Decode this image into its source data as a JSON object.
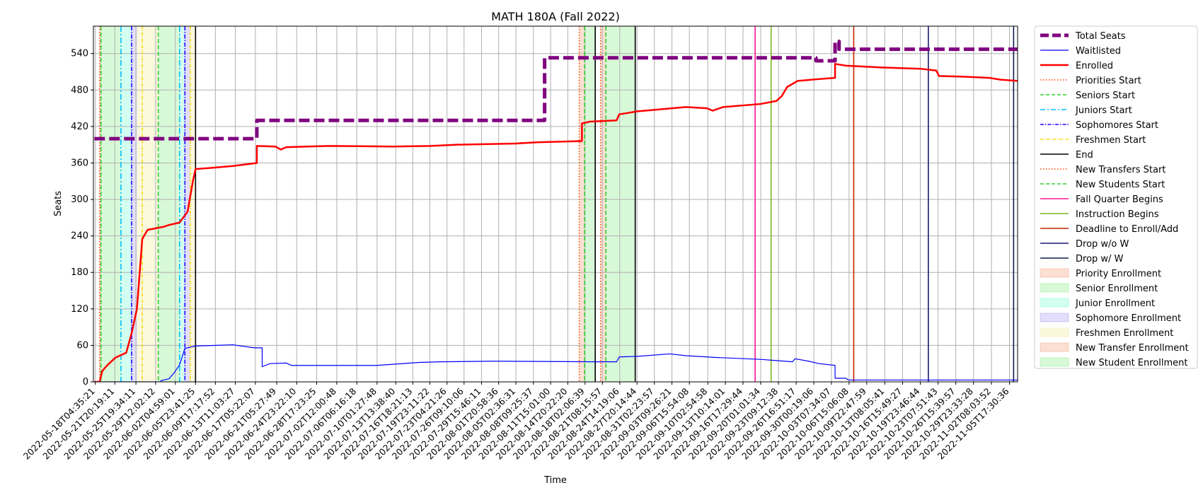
{
  "chart_data": {
    "type": "line",
    "title": "MATH 180A (Fall 2022)",
    "xlabel": "Time",
    "ylabel": "Seats",
    "xlim": [
      "2022-05-17T20:00:00",
      "2022-11-07T06:00:00"
    ],
    "ylim": [
      0,
      585
    ],
    "y_ticks": [
      0,
      60,
      120,
      180,
      240,
      300,
      360,
      420,
      480,
      540
    ],
    "x_ticks": [
      "2022-05-18T04:35:21",
      "2022-05-21T20:19:11",
      "2022-05-25T19:34:11",
      "2022-05-29T12:02:12",
      "2022-06-02T04:59:01",
      "2022-06-05T23:41:25",
      "2022-06-09T17:17:52",
      "2022-06-13T11:03:27",
      "2022-06-17T05:22:07",
      "2022-06-21T05:27:49",
      "2022-06-24T23:22:10",
      "2022-06-28T17:23:25",
      "2022-07-02T12:00:48",
      "2022-07-06T06:16:18",
      "2022-07-10T01:27:48",
      "2022-07-13T13:38:40",
      "2022-07-16T18:21:13",
      "2022-07-19T23:11:22",
      "2022-07-23T04:21:26",
      "2022-07-26T09:10:06",
      "2022-07-29T15:46:11",
      "2022-08-01T20:58:36",
      "2022-08-05T02:36:31",
      "2022-08-08T09:25:37",
      "2022-08-11T15:01:00",
      "2022-08-14T20:22:20",
      "2022-08-18T02:06:39",
      "2022-08-21T08:15:57",
      "2022-08-24T14:19:06",
      "2022-08-27T20:14:44",
      "2022-08-31T02:23:57",
      "2022-09-03T09:26:21",
      "2022-09-06T15:54:08",
      "2022-09-10T02:54:58",
      "2022-09-13T10:14:01",
      "2022-09-16T17:29:44",
      "2022-09-20T01:01:34",
      "2022-09-23T09:12:38",
      "2022-09-26T16:51:17",
      "2022-09-30T00:19:06",
      "2022-10-03T07:34:07",
      "2022-10-06T15:06:08",
      "2022-10-09T22:47:59",
      "2022-10-13T08:05:41",
      "2022-10-16T15:49:27",
      "2022-10-19T23:46:44",
      "2022-10-23T07:51:43",
      "2022-10-26T15:39:57",
      "2022-10-29T23:33:28",
      "2022-11-02T08:03:52",
      "2022-11-05T17:30:36"
    ],
    "grid": true,
    "legend_position": "outside-right",
    "series": [
      {
        "name": "Total Seats",
        "color": "#800080",
        "style": "dashed-thick",
        "points": [
          [
            "2022-05-18T00:00",
            400
          ],
          [
            "2022-06-17T12:00",
            400
          ],
          [
            "2022-06-17T12:00",
            430
          ],
          [
            "2022-08-10T12:00",
            430
          ],
          [
            "2022-08-10T12:00",
            533
          ],
          [
            "2022-09-30T10:00",
            533
          ],
          [
            "2022-09-30T10:00",
            528
          ],
          [
            "2022-10-04T00:00",
            528
          ],
          [
            "2022-10-04T00:00",
            560
          ],
          [
            "2022-10-04T18:00",
            560
          ],
          [
            "2022-10-04T18:00",
            547
          ],
          [
            "2022-11-07T06:00",
            547
          ]
        ]
      },
      {
        "name": "Waitlisted",
        "color": "#0000ff",
        "style": "solid-thin",
        "points": [
          [
            "2022-05-18T00:00",
            0
          ],
          [
            "2022-05-30T12:00",
            0
          ],
          [
            "2022-05-30T12:00",
            2
          ],
          [
            "2022-06-01T00:00",
            5
          ],
          [
            "2022-06-02T00:00",
            15
          ],
          [
            "2022-06-03T00:00",
            28
          ],
          [
            "2022-06-04T00:00",
            55
          ],
          [
            "2022-06-06T00:00",
            59
          ],
          [
            "2022-06-10T00:00",
            60
          ],
          [
            "2022-06-13T00:00",
            61
          ],
          [
            "2022-06-17T00:00",
            56
          ],
          [
            "2022-06-18T12:00",
            56
          ],
          [
            "2022-06-18T12:00",
            25
          ],
          [
            "2022-06-20T00:00",
            30
          ],
          [
            "2022-06-23T00:00",
            31
          ],
          [
            "2022-06-24T00:00",
            27
          ],
          [
            "2022-07-10T00:00",
            27
          ],
          [
            "2022-07-18T00:00",
            32
          ],
          [
            "2022-07-22T00:00",
            33
          ],
          [
            "2022-08-01T00:00",
            34
          ],
          [
            "2022-08-20T00:00",
            33
          ],
          [
            "2022-08-24T00:00",
            33
          ],
          [
            "2022-08-24T12:00",
            41
          ],
          [
            "2022-08-28T00:00",
            42
          ],
          [
            "2022-09-03T00:00",
            46
          ],
          [
            "2022-09-06T00:00",
            43
          ],
          [
            "2022-09-12T00:00",
            40
          ],
          [
            "2022-09-20T00:00",
            37
          ],
          [
            "2022-09-23T00:00",
            35
          ],
          [
            "2022-09-26T00:00",
            33
          ],
          [
            "2022-09-26T12:00",
            38
          ],
          [
            "2022-09-29T00:00",
            34
          ],
          [
            "2022-10-01T00:00",
            30
          ],
          [
            "2022-10-04T00:00",
            27
          ],
          [
            "2022-10-04T00:00",
            6
          ],
          [
            "2022-10-06T00:00",
            6
          ],
          [
            "2022-10-06T12:00",
            3
          ],
          [
            "2022-11-07T06:00",
            3
          ]
        ]
      },
      {
        "name": "Enrolled",
        "color": "#ff0000",
        "style": "solid-thick",
        "points": [
          [
            "2022-05-18T00:00",
            0
          ],
          [
            "2022-05-19T00:00",
            0
          ],
          [
            "2022-05-19T12:00",
            18
          ],
          [
            "2022-05-20T12:00",
            28
          ],
          [
            "2022-05-22T00:00",
            40
          ],
          [
            "2022-05-24T00:00",
            48
          ],
          [
            "2022-05-25T00:00",
            80
          ],
          [
            "2022-05-26T00:00",
            120
          ],
          [
            "2022-05-27T00:00",
            235
          ],
          [
            "2022-05-28T00:00",
            250
          ],
          [
            "2022-05-31T00:00",
            255
          ],
          [
            "2022-06-01T00:00",
            258
          ],
          [
            "2022-06-03T00:00",
            262
          ],
          [
            "2022-06-04T12:00",
            280
          ],
          [
            "2022-06-05T12:00",
            330
          ],
          [
            "2022-06-06T00:00",
            350
          ],
          [
            "2022-06-09T00:00",
            352
          ],
          [
            "2022-06-13T00:00",
            355
          ],
          [
            "2022-06-17T12:00",
            360
          ],
          [
            "2022-06-17T12:00",
            388
          ],
          [
            "2022-06-21T00:00",
            387
          ],
          [
            "2022-06-22T00:00",
            382
          ],
          [
            "2022-06-23T00:00",
            386
          ],
          [
            "2022-07-01T00:00",
            388
          ],
          [
            "2022-07-13T00:00",
            387
          ],
          [
            "2022-07-20T00:00",
            388
          ],
          [
            "2022-07-25T00:00",
            390
          ],
          [
            "2022-08-05T00:00",
            392
          ],
          [
            "2022-08-09T00:00",
            394
          ],
          [
            "2022-08-17T12:00",
            396
          ],
          [
            "2022-08-17T12:00",
            425
          ],
          [
            "2022-08-19T00:00",
            428
          ],
          [
            "2022-08-24T00:00",
            430
          ],
          [
            "2022-08-24T12:00",
            440
          ],
          [
            "2022-08-28T00:00",
            445
          ],
          [
            "2022-09-01T00:00",
            448
          ],
          [
            "2022-09-06T00:00",
            452
          ],
          [
            "2022-09-10T00:00",
            450
          ],
          [
            "2022-09-11T00:00",
            446
          ],
          [
            "2022-09-13T00:00",
            452
          ],
          [
            "2022-09-20T00:00",
            457
          ],
          [
            "2022-09-23T00:00",
            462
          ],
          [
            "2022-09-24T00:00",
            470
          ],
          [
            "2022-09-25T00:00",
            485
          ],
          [
            "2022-09-27T00:00",
            495
          ],
          [
            "2022-10-01T00:00",
            498
          ],
          [
            "2022-10-04T00:00",
            500
          ],
          [
            "2022-10-04T00:00",
            523
          ],
          [
            "2022-10-06T00:00",
            520
          ],
          [
            "2022-10-13T00:00",
            517
          ],
          [
            "2022-10-20T00:00",
            515
          ],
          [
            "2022-10-23T00:00",
            512
          ],
          [
            "2022-10-23T12:00",
            503
          ],
          [
            "2022-10-28T00:00",
            502
          ],
          [
            "2022-11-02T00:00",
            500
          ],
          [
            "2022-11-04T00:00",
            497
          ],
          [
            "2022-11-07T06:00",
            495
          ]
        ]
      }
    ],
    "vlines": [
      {
        "name": "Priorities Start",
        "color": "#ff4500",
        "style": "dotted",
        "x": [
          "2022-05-19T00:00",
          "2022-08-17T00:00"
        ]
      },
      {
        "name": "Seniors Start",
        "color": "#32cd32",
        "style": "dashed",
        "x": [
          "2022-05-19T06:00",
          "2022-05-30T00:00"
        ]
      },
      {
        "name": "Juniors Start",
        "color": "#00bfff",
        "style": "dashdot",
        "x": [
          "2022-05-23T00:00",
          "2022-06-03T00:00"
        ]
      },
      {
        "name": "Sophomores Start",
        "color": "#1e00ff",
        "style": "dashdotdense",
        "x": [
          "2022-05-25T00:00",
          "2022-06-04T00:00"
        ]
      },
      {
        "name": "Freshmen Start",
        "color": "#ffd700",
        "style": "dashdotlight",
        "x": [
          "2022-05-27T00:00",
          "2022-06-05T00:00"
        ]
      },
      {
        "name": "End",
        "color": "#000000",
        "style": "solid",
        "x": [
          "2022-06-06T00:00",
          "2022-08-20T00:00",
          "2022-08-27T12:00"
        ]
      },
      {
        "name": "New Transfers Start",
        "color": "#ff4500",
        "style": "dotted",
        "x": [
          "2022-08-21T00:00"
        ]
      },
      {
        "name": "New Students Start",
        "color": "#32cd32",
        "style": "dashed",
        "x": [
          "2022-08-18T00:00",
          "2022-08-22T00:00"
        ]
      },
      {
        "name": "Fall Quarter Begins",
        "color": "#ff1493",
        "style": "solid",
        "x": [
          "2022-09-19T00:00"
        ]
      },
      {
        "name": "Instruction Begins",
        "color": "#7cb518",
        "style": "solid",
        "x": [
          "2022-09-22T00:00"
        ]
      },
      {
        "name": "Deadline to Enroll/Add",
        "color": "#cc2200",
        "style": "solid",
        "x": [
          "2022-10-07T12:00"
        ]
      },
      {
        "name": "Drop w/o W",
        "color": "#191970",
        "style": "solid",
        "x": [
          "2022-10-21T12:00"
        ]
      },
      {
        "name": "Drop w/ W",
        "color": "#0f1c4f",
        "style": "solid",
        "x": [
          "2022-11-06T12:00"
        ]
      }
    ],
    "spans": [
      {
        "name": "Priority Enrollment",
        "color": "#f4a582",
        "ranges": [
          [
            "2022-05-19T00:00",
            "2022-05-19T06:00"
          ]
        ]
      },
      {
        "name": "Senior Enrollment",
        "color": "#90ee90",
        "ranges": [
          [
            "2022-05-19T06:00",
            "2022-05-23T00:00"
          ],
          [
            "2022-05-30T00:00",
            "2022-06-03T00:00"
          ]
        ]
      },
      {
        "name": "Junior Enrollment",
        "color": "#7fffd4",
        "ranges": [
          [
            "2022-05-23T00:00",
            "2022-05-25T00:00"
          ],
          [
            "2022-06-03T00:00",
            "2022-06-04T00:00"
          ]
        ]
      },
      {
        "name": "Sophomore Enrollment",
        "color": "#b0a0f0",
        "ranges": [
          [
            "2022-05-25T00:00",
            "2022-05-26T00:00"
          ],
          [
            "2022-06-04T00:00",
            "2022-06-05T00:00"
          ]
        ]
      },
      {
        "name": "Freshmen Enrollment",
        "color": "#f0eea0",
        "ranges": [
          [
            "2022-05-26T00:00",
            "2022-05-30T00:00"
          ],
          [
            "2022-06-05T00:00",
            "2022-06-06T00:00"
          ]
        ]
      },
      {
        "name": "New Transfer Enrollment",
        "color": "#f4a582",
        "ranges": [
          [
            "2022-08-17T00:00",
            "2022-08-18T00:00"
          ],
          [
            "2022-08-21T00:00",
            "2022-08-22T00:00"
          ]
        ]
      },
      {
        "name": "New Student Enrollment",
        "color": "#90ee90",
        "ranges": [
          [
            "2022-08-18T00:00",
            "2022-08-20T00:00"
          ],
          [
            "2022-08-22T00:00",
            "2022-08-27T12:00"
          ]
        ]
      }
    ]
  }
}
